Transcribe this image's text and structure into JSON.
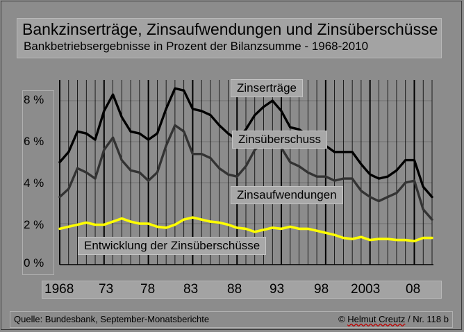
{
  "title": "Bankzinserträge, Zinsaufwendungen und Zinsüberschüsse",
  "subtitle": "Bankbetriebsergebnisse in Prozent der Bilanzsumme  - 1968-2010",
  "source": "Quelle: Bundesbank, September-Monatsberichte",
  "credit_prefix": "©  ",
  "credit_name": "Helmut Creutz",
  "credit_suffix": "  /  Nr. 118 b",
  "colors": {
    "background": "#8c8c8c",
    "zinsertraege": "#000000",
    "zinsueberschuss": "#333333",
    "entwicklung": "#ffff00"
  },
  "chart_data": {
    "type": "line",
    "xlim": [
      1968,
      2010
    ],
    "ylim": [
      0,
      8
    ],
    "y_ticks": [
      "0 %",
      "2 %",
      "4 %",
      "6 %",
      "8 %"
    ],
    "x_ticks": [
      "1968",
      "73",
      "78",
      "83",
      "88",
      "93",
      "98",
      "2003",
      "08"
    ],
    "x": [
      1968,
      1969,
      1970,
      1971,
      1972,
      1973,
      1974,
      1975,
      1976,
      1977,
      1978,
      1979,
      1980,
      1981,
      1982,
      1983,
      1984,
      1985,
      1986,
      1987,
      1988,
      1989,
      1990,
      1991,
      1992,
      1993,
      1994,
      1995,
      1996,
      1997,
      1998,
      1999,
      2000,
      2001,
      2002,
      2003,
      2004,
      2005,
      2006,
      2007,
      2008,
      2009,
      2010
    ],
    "series": [
      {
        "name": "Zinserträge",
        "color": "#000000",
        "values": [
          5.0,
          5.5,
          6.5,
          6.4,
          6.1,
          7.5,
          8.3,
          7.2,
          6.5,
          6.4,
          6.1,
          6.4,
          7.6,
          8.6,
          8.5,
          7.6,
          7.5,
          7.3,
          6.8,
          6.4,
          6.1,
          6.6,
          7.3,
          7.7,
          8.0,
          7.5,
          6.7,
          6.6,
          6.3,
          6.0,
          5.8,
          5.5,
          5.5,
          5.5,
          4.9,
          4.4,
          4.2,
          4.3,
          4.6,
          5.1,
          5.1,
          3.8,
          3.3
        ]
      },
      {
        "name": "Zinsaufwendungen",
        "color": "#333333",
        "values": [
          3.3,
          3.7,
          4.7,
          4.5,
          4.2,
          5.6,
          6.2,
          5.1,
          4.6,
          4.5,
          4.1,
          4.5,
          5.8,
          6.8,
          6.5,
          5.4,
          5.4,
          5.2,
          4.7,
          4.4,
          4.3,
          4.8,
          5.6,
          6.0,
          6.3,
          5.7,
          5.0,
          4.8,
          4.5,
          4.3,
          4.3,
          4.1,
          4.2,
          4.2,
          3.6,
          3.3,
          3.1,
          3.3,
          3.5,
          4.0,
          4.1,
          2.7,
          2.2
        ]
      },
      {
        "name": "Entwicklung der Zinsüberschüsse",
        "color": "#ffff00",
        "values": [
          1.75,
          1.85,
          1.95,
          2.05,
          1.95,
          1.95,
          2.1,
          2.25,
          2.1,
          2.0,
          2.0,
          1.85,
          1.8,
          1.95,
          2.2,
          2.3,
          2.2,
          2.1,
          2.05,
          1.95,
          1.8,
          1.75,
          1.6,
          1.7,
          1.8,
          1.75,
          1.85,
          1.75,
          1.75,
          1.65,
          1.55,
          1.45,
          1.3,
          1.25,
          1.35,
          1.2,
          1.25,
          1.25,
          1.2,
          1.2,
          1.15,
          1.3,
          1.3
        ]
      }
    ],
    "labels": {
      "zinsertraege": "Zinserträge",
      "zinsueberschuss": "Zinsüberschuss",
      "zinsaufwendungen": "Zinsaufwendungen",
      "entwicklung": "Entwicklung der Zinsüberschüsse"
    }
  }
}
